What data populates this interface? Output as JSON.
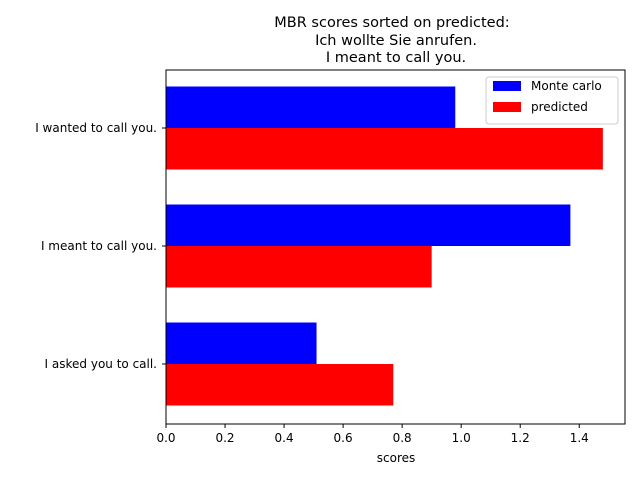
{
  "chart_data": {
    "type": "bar",
    "orientation": "horizontal",
    "title_lines": [
      "MBR scores sorted on predicted:",
      "Ich wollte Sie anrufen.",
      "I meant to call you."
    ],
    "xlabel": "scores",
    "ylabel": "",
    "xlim": [
      0,
      1.555
    ],
    "xticks": [
      "0.0",
      "0.2",
      "0.4",
      "0.6",
      "0.8",
      "1.0",
      "1.2",
      "1.4"
    ],
    "categories": [
      "I wanted to call you.",
      "I meant to call you.",
      "I asked you to call."
    ],
    "series": [
      {
        "name": "Monte carlo",
        "color": "#0000ff",
        "values": [
          0.98,
          1.37,
          0.51
        ]
      },
      {
        "name": "predicted",
        "color": "#ff0000",
        "values": [
          1.48,
          0.9,
          0.77
        ]
      }
    ],
    "legend_position": "top-right",
    "grid": false
  }
}
